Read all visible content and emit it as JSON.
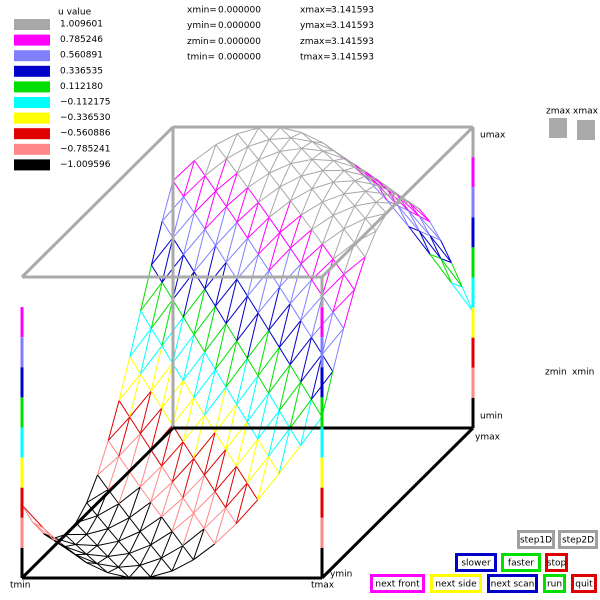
{
  "legend": {
    "title": "u value",
    "items": [
      {
        "label": "1.009601",
        "color": "#a8a8a8"
      },
      {
        "label": "0.785246",
        "color": "#ff00ff"
      },
      {
        "label": "0.560891",
        "color": "#8080ff"
      },
      {
        "label": "0.336535",
        "color": "#0000c8"
      },
      {
        "label": "0.112180",
        "color": "#00e000"
      },
      {
        "label": "−0.112175",
        "color": "#00ffff"
      },
      {
        "label": "−0.336530",
        "color": "#ffff00"
      },
      {
        "label": "−0.560886",
        "color": "#e00000"
      },
      {
        "label": "−0.785241",
        "color": "#ff8888"
      },
      {
        "label": "−1.009596",
        "color": "#000000"
      }
    ]
  },
  "ranges": [
    {
      "min_label": "xmin=",
      "min": "0.000000",
      "max_label": "xmax=",
      "max": "3.141593"
    },
    {
      "min_label": "ymin=",
      "min": "0.000000",
      "max_label": "ymax=",
      "max": "3.141593"
    },
    {
      "min_label": "zmin=",
      "min": "0.000000",
      "max_label": "zmax=",
      "max": "3.141593"
    },
    {
      "min_label": "tmin=",
      "min": "0.000000",
      "max_label": "tmax=",
      "max": "3.141593"
    }
  ],
  "axis_labels": {
    "umax": "umax",
    "umin": "umin",
    "ymax": "ymax",
    "ymin": "ymin",
    "tmin": "tmin",
    "tmax": "tmax",
    "zmax": "zmax",
    "xmax": "xmax",
    "zmin": "zmin",
    "xmin": "xmin"
  },
  "buttons": [
    {
      "label": "step1D",
      "color": "#a0a0a0"
    },
    {
      "label": "step2D",
      "color": "#a0a0a0"
    },
    {
      "label": "slower",
      "color": "#0000c8"
    },
    {
      "label": "faster",
      "color": "#00e000"
    },
    {
      "label": "stop",
      "color": "#e00000"
    },
    {
      "label": "next front",
      "color": "#ff00ff"
    },
    {
      "label": "next side",
      "color": "#ffff00"
    },
    {
      "label": "next scan",
      "color": "#0000c8"
    },
    {
      "label": "run",
      "color": "#00e000"
    },
    {
      "label": "quit",
      "color": "#e00000"
    }
  ]
}
